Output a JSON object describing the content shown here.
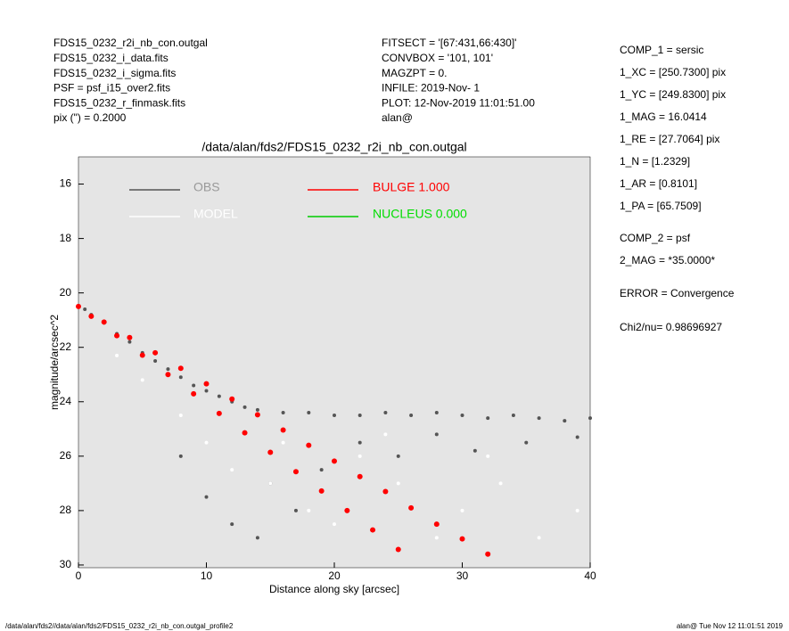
{
  "header_left": [
    "FDS15_0232_r2i_nb_con.outgal",
    "FDS15_0232_i_data.fits",
    "FDS15_0232_i_sigma.fits",
    "PSF     = psf_i15_over2.fits",
    "FDS15_0232_r_finmask.fits",
    "pix (\") =  0.2000"
  ],
  "header_middle": [
    "FITSECT = '[67:431,66:430]'",
    "CONVBOX = '101, 101'",
    "MAGZPT  =              0.",
    "INFILE: 2019-Nov- 1",
    "PLOT: 12-Nov-2019 11:01:51.00",
    "alan@"
  ],
  "params": [
    "COMP_1  = sersic",
    "1_XC    = [250.7300] pix",
    "1_YC    = [249.8300] pix",
    "1_MAG   = 16.0414",
    "1_RE    = [27.7064] pix",
    "1_N     = [1.2329]",
    "1_AR    = [0.8101]",
    "1_PA    = [65.7509]",
    "COMP_2  = psf",
    "2_MAG   = *35.0000*",
    "ERROR   = Convergence",
    "Chi2/nu=      0.98696927"
  ],
  "footer_left": "/data/alan/fds2//data/alan/fds2/FDS15_0232_r2i_nb_con.outgal_profile2",
  "footer_right": "alan@  Tue Nov 12 11:01:51 2019",
  "chart_data": {
    "type": "scatter",
    "title": "/data/alan/fds2/FDS15_0232_r2i_nb_con.outgal",
    "xlabel": "Distance along sky [arcsec]",
    "ylabel": "magnitude/arcsec^2",
    "xlim": [
      0,
      40
    ],
    "ylim": [
      30.1,
      15.0
    ],
    "xticks": [
      0,
      10,
      20,
      30,
      40
    ],
    "yticks": [
      16,
      18,
      20,
      22,
      24,
      26,
      28,
      30
    ],
    "background": "#e5e5e5",
    "series": [
      {
        "name": "OBS",
        "color": "#555555",
        "label_color": "#999999",
        "x": [
          0.5,
          1,
          2,
          3,
          4,
          5,
          6,
          7,
          8,
          9,
          10,
          11,
          12,
          13,
          14,
          16,
          18,
          20,
          22,
          24,
          26,
          28,
          30,
          32,
          34,
          36,
          38,
          40,
          8,
          10,
          12,
          14,
          15,
          17,
          19,
          22,
          25,
          28,
          31,
          35,
          39
        ],
        "values": [
          20.6,
          20.8,
          21.1,
          21.5,
          21.8,
          22.2,
          22.5,
          22.8,
          23.1,
          23.4,
          23.6,
          23.8,
          24.0,
          24.2,
          24.3,
          24.4,
          24.4,
          24.5,
          24.5,
          24.4,
          24.5,
          24.4,
          24.5,
          24.6,
          24.5,
          24.6,
          24.7,
          24.6,
          26,
          27.5,
          28.5,
          29,
          27,
          28,
          26.5,
          25.5,
          26,
          25.2,
          25.8,
          25.5,
          25.3
        ]
      },
      {
        "name": "MODEL",
        "color": "#ffffff",
        "label_color": "#ffffff",
        "x": [
          3,
          5,
          8,
          10,
          12,
          15,
          16,
          18,
          20,
          22,
          24,
          25,
          28,
          30,
          32,
          33,
          36,
          39
        ],
        "values": [
          22.3,
          23.2,
          24.5,
          25.5,
          26.5,
          27,
          25.5,
          28,
          28.5,
          26,
          25.2,
          27,
          29,
          28,
          26,
          27,
          29,
          28
        ]
      },
      {
        "name": "BULGE  1.000",
        "color": "#ff0000",
        "label_color": "#ff0000",
        "x": [
          0,
          2,
          4,
          6,
          8,
          10,
          12,
          14,
          16,
          18,
          20,
          22,
          24,
          26,
          28,
          30,
          32,
          1,
          3,
          5,
          7,
          9,
          11,
          13,
          15,
          17,
          19,
          21,
          23,
          25
        ],
        "values": [
          20.5,
          21.07,
          21.64,
          22.2,
          22.77,
          23.34,
          23.9,
          24.48,
          25.04,
          25.6,
          26.18,
          26.75,
          27.3,
          27.9,
          28.5,
          29.04,
          29.6,
          20.86,
          21.57,
          22.29,
          23.0,
          23.71,
          24.43,
          25.14,
          25.86,
          26.57,
          27.28,
          28.0,
          28.71,
          29.43
        ]
      },
      {
        "name": "NUCLEUS  0.000",
        "color": "#00cc00",
        "label_color": "#00dd00",
        "x": [],
        "values": []
      }
    ]
  }
}
